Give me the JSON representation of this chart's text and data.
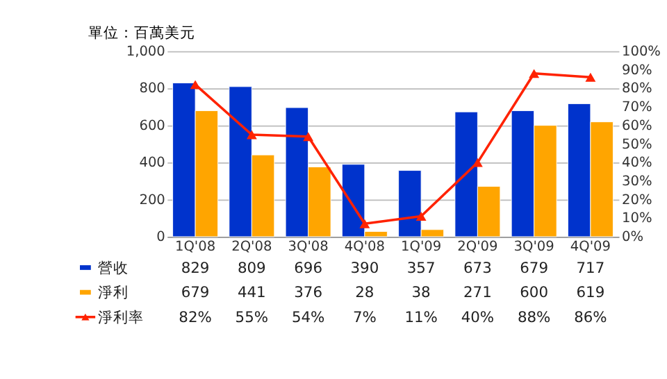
{
  "chart_data": {
    "type": "bar",
    "title": "單位：百萬美元",
    "categories": [
      "1Q'08",
      "2Q'08",
      "3Q'08",
      "4Q'08",
      "1Q'09",
      "2Q'09",
      "3Q'09",
      "4Q'09"
    ],
    "series": [
      {
        "name": "營收",
        "color": "#0033cc",
        "values": [
          829,
          809,
          696,
          390,
          357,
          673,
          679,
          717
        ],
        "value_labels": [
          "829",
          "809",
          "696",
          "390",
          "357",
          "673",
          "679",
          "717"
        ]
      },
      {
        "name": "淨利",
        "color": "#ffa500",
        "values": [
          679,
          441,
          376,
          28,
          38,
          271,
          600,
          619
        ],
        "value_labels": [
          "679",
          "441",
          "376",
          "28",
          "38",
          "271",
          "600",
          "619"
        ]
      },
      {
        "name": "淨利率",
        "type": "line",
        "axis": "y2",
        "color": "#ff2200",
        "marker": "triangle",
        "line_style": "solid",
        "values": [
          82,
          55,
          54,
          7,
          11,
          40,
          88,
          86
        ],
        "value_labels": [
          "82%",
          "55%",
          "54%",
          "7%",
          "11%",
          "40%",
          "88%",
          "86%"
        ]
      }
    ],
    "ylim": [
      0,
      1000
    ],
    "yticks": [
      0,
      200,
      400,
      600,
      800,
      {
        "value": 1000,
        "label": "1,000"
      }
    ],
    "y2lim": [
      0,
      100
    ],
    "y2ticks": [
      {
        "value": 0,
        "label": "0%"
      },
      {
        "value": 10,
        "label": "10%"
      },
      {
        "value": 20,
        "label": "20%"
      },
      {
        "value": 30,
        "label": "30%"
      },
      {
        "value": 40,
        "label": "40%"
      },
      {
        "value": 50,
        "label": "50%"
      },
      {
        "value": 60,
        "label": "60%"
      },
      {
        "value": 70,
        "label": "70%"
      },
      {
        "value": 80,
        "label": "80%"
      },
      {
        "value": 90,
        "label": "90%"
      },
      {
        "value": 100,
        "label": "100%"
      }
    ],
    "grid": "y",
    "legend": "bottom"
  }
}
